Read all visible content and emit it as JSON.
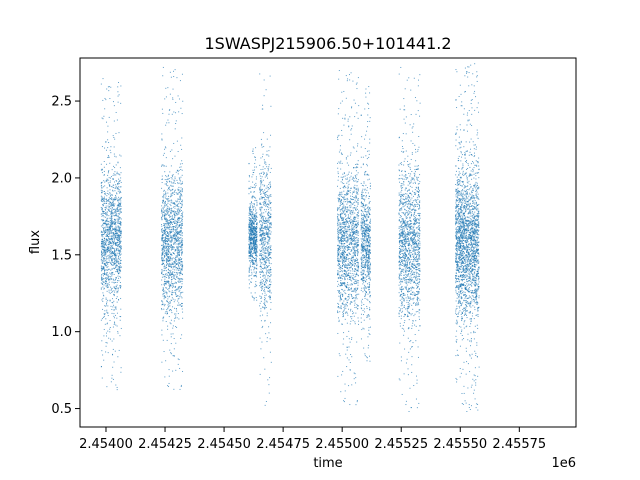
{
  "chart_data": {
    "type": "scatter",
    "title": "1SWASPJ215906.50+101441.2",
    "xlabel": "time",
    "ylabel": "flux",
    "x_offset_label": "1e6",
    "xlim": [
      2453890,
      2455990
    ],
    "ylim": [
      0.38,
      2.78
    ],
    "x_ticks": [
      2454000,
      2454250,
      2454500,
      2454750,
      2455000,
      2455250,
      2455500,
      2455750
    ],
    "x_tick_labels": [
      "2.45400",
      "2.45425",
      "2.45450",
      "2.45475",
      "2.45500",
      "2.45525",
      "2.45550",
      "2.45575"
    ],
    "y_ticks": [
      0.5,
      1.0,
      1.5,
      2.0,
      2.5
    ],
    "y_tick_labels": [
      "0.5",
      "1.0",
      "1.5",
      "2.0",
      "2.5"
    ],
    "grid": false,
    "marker_color": "#1f77b4",
    "observing_seasons": [
      {
        "x_start": 2453980,
        "x_end": 2454065,
        "median_flux": 1.6,
        "flux_min": 0.6,
        "flux_max": 2.65,
        "density": "high"
      },
      {
        "x_start": 2454235,
        "x_end": 2454325,
        "median_flux": 1.58,
        "flux_min": 0.6,
        "flux_max": 2.72,
        "density": "high"
      },
      {
        "x_start": 2454605,
        "x_end": 2454640,
        "median_flux": 1.62,
        "flux_min": 1.2,
        "flux_max": 2.2,
        "density": "medium"
      },
      {
        "x_start": 2454650,
        "x_end": 2454700,
        "median_flux": 1.6,
        "flux_min": 0.52,
        "flux_max": 2.72,
        "density": "medium"
      },
      {
        "x_start": 2454980,
        "x_end": 2455070,
        "median_flux": 1.58,
        "flux_min": 0.5,
        "flux_max": 2.7,
        "density": "high"
      },
      {
        "x_start": 2455080,
        "x_end": 2455120,
        "median_flux": 1.57,
        "flux_min": 0.8,
        "flux_max": 2.6,
        "density": "medium"
      },
      {
        "x_start": 2455240,
        "x_end": 2455330,
        "median_flux": 1.56,
        "flux_min": 0.48,
        "flux_max": 2.72,
        "density": "high"
      },
      {
        "x_start": 2455480,
        "x_end": 2455580,
        "median_flux": 1.58,
        "flux_min": 0.48,
        "flux_max": 2.75,
        "density": "very-high"
      }
    ]
  }
}
